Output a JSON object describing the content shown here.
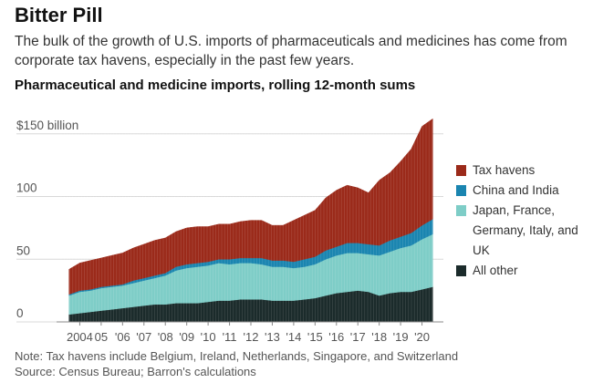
{
  "header": {
    "title": "Bitter Pill",
    "subtitle": "The bulk of the growth of U.S. imports of pharmaceuticals and medicines has come from corporate tax havens, especially in the past few years.",
    "chart_heading": "Pharmaceutical and medicine imports, rolling 12-month sums"
  },
  "footer": {
    "note": "Note: Tax havens include Belgium, Ireland, Netherlands, Singapore, and Switzerland",
    "source": "Source: Census Bureau; Barron's calculations"
  },
  "colors": {
    "tax_havens": "#9b2a1a",
    "china_india": "#1a85b0",
    "japan_europe": "#7ecdc7",
    "all_other": "#1b2b2b",
    "gridline": "#d8d8d8"
  },
  "chart_data": {
    "type": "area",
    "stacked": true,
    "title": "Pharmaceutical and medicine imports, rolling 12-month sums",
    "y_unit": "$ billion",
    "ylim": [
      0,
      160
    ],
    "y_ticks": [
      {
        "value": 0,
        "label": "0"
      },
      {
        "value": 50,
        "label": "50"
      },
      {
        "value": 100,
        "label": "100"
      },
      {
        "value": 150,
        "label": "$150 billion"
      }
    ],
    "x_ticks": [
      {
        "value": 2004,
        "label": "2004"
      },
      {
        "value": 2005,
        "label": "05"
      },
      {
        "value": 2006,
        "label": "'06"
      },
      {
        "value": 2007,
        "label": "'07"
      },
      {
        "value": 2008,
        "label": "'08"
      },
      {
        "value": 2009,
        "label": "'09"
      },
      {
        "value": 2010,
        "label": "'10"
      },
      {
        "value": 2011,
        "label": "'11"
      },
      {
        "value": 2012,
        "label": "'12"
      },
      {
        "value": 2013,
        "label": "'13"
      },
      {
        "value": 2014,
        "label": "'14"
      },
      {
        "value": 2015,
        "label": "'15"
      },
      {
        "value": 2016,
        "label": "'16"
      },
      {
        "value": 2017,
        "label": "'17"
      },
      {
        "value": 2018,
        "label": "'18"
      },
      {
        "value": 2019,
        "label": "'19"
      },
      {
        "value": 2020,
        "label": "'20"
      }
    ],
    "xlim": [
      2003,
      2021
    ],
    "grid": true,
    "legend_position": "right",
    "x": [
      2003.5,
      2004.0,
      2004.5,
      2005.0,
      2005.5,
      2006.0,
      2006.5,
      2007.0,
      2007.5,
      2008.0,
      2008.5,
      2009.0,
      2009.5,
      2010.0,
      2010.5,
      2011.0,
      2011.5,
      2012.0,
      2012.5,
      2013.0,
      2013.5,
      2014.0,
      2014.5,
      2015.0,
      2015.5,
      2016.0,
      2016.5,
      2017.0,
      2017.5,
      2018.0,
      2018.5,
      2019.0,
      2019.5,
      2020.0,
      2020.5
    ],
    "series": [
      {
        "name": "All other",
        "color_key": "all_other",
        "values": [
          6,
          7,
          8,
          9,
          10,
          11,
          12,
          13,
          14,
          14,
          15,
          15,
          15,
          16,
          17,
          17,
          18,
          18,
          18,
          17,
          17,
          17,
          18,
          19,
          21,
          23,
          24,
          25,
          24,
          21,
          23,
          24,
          24,
          26,
          28
        ]
      },
      {
        "name": "Japan, France, Germany, Italy, and UK",
        "color_key": "japan_europe",
        "values": [
          15,
          17,
          17,
          18,
          18,
          18,
          19,
          20,
          21,
          23,
          26,
          28,
          29,
          29,
          30,
          29,
          29,
          29,
          28,
          27,
          27,
          26,
          26,
          27,
          29,
          30,
          31,
          30,
          30,
          32,
          33,
          35,
          37,
          40,
          42
        ]
      },
      {
        "name": "China and India",
        "color_key": "china_india",
        "values": [
          1,
          1,
          1,
          1,
          1,
          1,
          2,
          2,
          2,
          2,
          3,
          3,
          3,
          3,
          3,
          4,
          4,
          4,
          5,
          5,
          5,
          5,
          6,
          6,
          7,
          7,
          8,
          8,
          8,
          8,
          9,
          9,
          10,
          11,
          12
        ]
      },
      {
        "name": "Tax havens",
        "color_key": "tax_havens",
        "values": [
          20,
          22,
          23,
          23,
          24,
          25,
          26,
          27,
          28,
          28,
          28,
          29,
          29,
          28,
          28,
          28,
          29,
          30,
          30,
          28,
          28,
          33,
          35,
          37,
          42,
          45,
          46,
          44,
          41,
          52,
          54,
          60,
          67,
          79,
          80
        ]
      }
    ]
  },
  "legend": {
    "items": [
      {
        "label": "Tax havens",
        "color_key": "tax_havens"
      },
      {
        "label": "China and India",
        "color_key": "china_india"
      },
      {
        "label": "Japan, France, Germany, Italy, and UK",
        "color_key": "japan_europe"
      },
      {
        "label": "All other",
        "color_key": "all_other"
      }
    ]
  }
}
